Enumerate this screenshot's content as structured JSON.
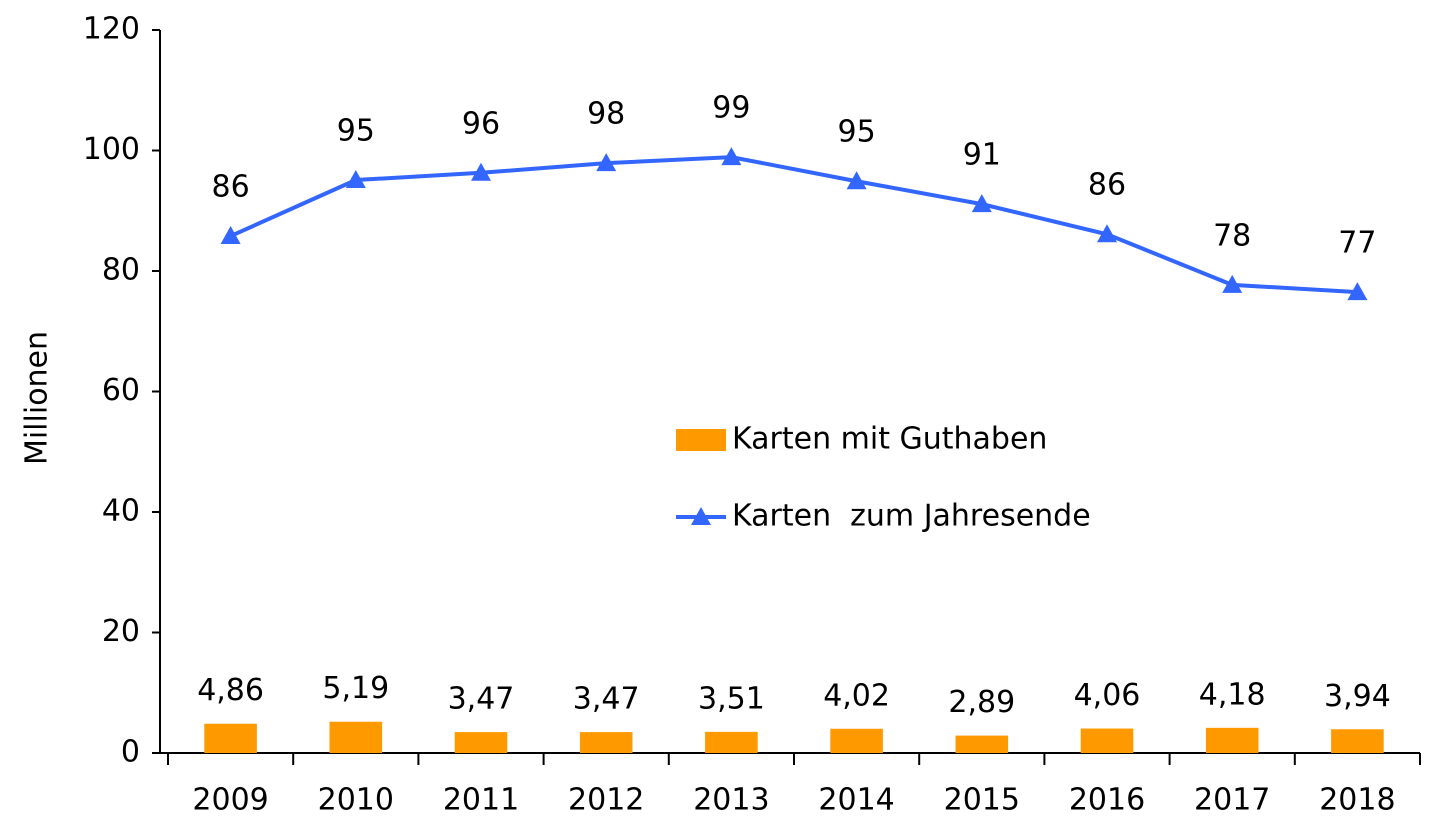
{
  "chart_data": {
    "type": "combo",
    "y_label": "Millionen",
    "categories": [
      "2009",
      "2010",
      "2011",
      "2012",
      "2013",
      "2014",
      "2015",
      "2016",
      "2017",
      "2018"
    ],
    "series": [
      {
        "name": "Karten mit Guthaben",
        "type": "bar",
        "color": "#ff9900",
        "values": [
          4.86,
          5.19,
          3.47,
          3.47,
          3.51,
          4.02,
          2.89,
          4.06,
          4.18,
          3.94
        ],
        "value_labels": [
          "4,86",
          "5,19",
          "3,47",
          "3,47",
          "3,51",
          "4,02",
          "2,89",
          "4,06",
          "4,18",
          "3,94"
        ]
      },
      {
        "name": "Karten  zum Jahresende",
        "type": "line",
        "color": "#3366ff",
        "values": [
          85.8,
          95.1,
          96.3,
          97.9,
          98.9,
          94.9,
          91.1,
          86.1,
          77.7,
          76.5
        ],
        "value_labels": [
          "86",
          "95",
          "96",
          "98",
          "99",
          "95",
          "91",
          "86",
          "78",
          "77"
        ]
      }
    ],
    "ylim": [
      0,
      120
    ],
    "yticks": [
      0,
      20,
      40,
      60,
      80,
      100,
      120
    ],
    "grid": false,
    "legend": "center"
  }
}
